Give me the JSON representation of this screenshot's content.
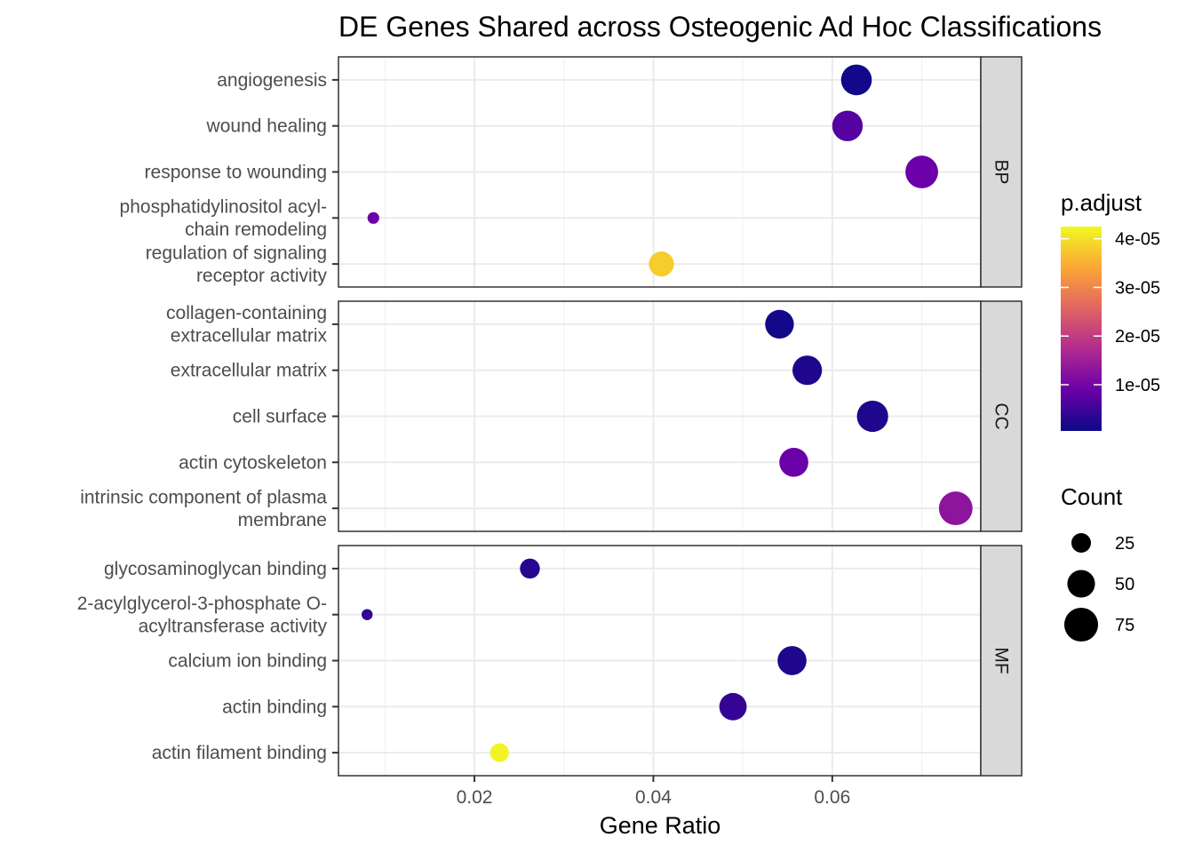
{
  "chart_data": {
    "type": "scatter",
    "title": "DE Genes Shared across Osteogenic Ad Hoc Classifications",
    "xlabel": "Gene Ratio",
    "ylabel": "",
    "xlim": [
      0.0048,
      0.0766
    ],
    "xticks": [
      {
        "value": 0.02,
        "label": "0.02"
      },
      {
        "value": 0.04,
        "label": "0.04"
      },
      {
        "value": 0.06,
        "label": "0.06"
      }
    ],
    "grid": true,
    "panels": [
      {
        "strip": "BP",
        "terms": [
          {
            "label": "angiogenesis",
            "gene_ratio": 0.0627,
            "count": 62,
            "p_adjust": 1e-06
          },
          {
            "label": "wound healing",
            "gene_ratio": 0.0617,
            "count": 61,
            "p_adjust": 7e-06
          },
          {
            "label": "response to wounding",
            "gene_ratio": 0.07,
            "count": 70,
            "p_adjust": 9e-06
          },
          {
            "label": "phosphatidylinositol acyl-\nchain remodeling",
            "gene_ratio": 0.0087,
            "count": 9,
            "p_adjust": 9e-06
          },
          {
            "label": "regulation of signaling\nreceptor activity",
            "gene_ratio": 0.0409,
            "count": 41,
            "p_adjust": 3.8e-05
          }
        ]
      },
      {
        "strip": "CC",
        "terms": [
          {
            "label": "collagen-containing\nextracellular matrix",
            "gene_ratio": 0.0541,
            "count": 54,
            "p_adjust": 1e-06
          },
          {
            "label": "extracellular matrix",
            "gene_ratio": 0.0572,
            "count": 57,
            "p_adjust": 2e-06
          },
          {
            "label": "cell surface",
            "gene_ratio": 0.0645,
            "count": 64,
            "p_adjust": 2e-06
          },
          {
            "label": "actin cytoskeleton",
            "gene_ratio": 0.0557,
            "count": 55,
            "p_adjust": 9e-06
          },
          {
            "label": "intrinsic component of plasma\nmembrane",
            "gene_ratio": 0.0738,
            "count": 74,
            "p_adjust": 1.3e-05
          }
        ]
      },
      {
        "strip": "MF",
        "terms": [
          {
            "label": "glycosaminoglycan binding",
            "gene_ratio": 0.0262,
            "count": 26,
            "p_adjust": 3e-06
          },
          {
            "label": "2-acylglycerol-3-phosphate O-\nacyltransferase activity",
            "gene_ratio": 0.008,
            "count": 8,
            "p_adjust": 4e-06
          },
          {
            "label": "calcium ion binding",
            "gene_ratio": 0.0555,
            "count": 55,
            "p_adjust": 2e-06
          },
          {
            "label": "actin binding",
            "gene_ratio": 0.0489,
            "count": 49,
            "p_adjust": 4e-06
          },
          {
            "label": "actin filament binding",
            "gene_ratio": 0.0228,
            "count": 23,
            "p_adjust": 4.2e-05
          }
        ]
      }
    ],
    "color_legend": {
      "title": "p.adjust",
      "range": [
        5e-07,
        4.25e-05
      ],
      "ticks": [
        {
          "value": 4e-05,
          "label": "4e-05"
        },
        {
          "value": 3e-05,
          "label": "3e-05"
        },
        {
          "value": 2e-05,
          "label": "2e-05"
        },
        {
          "value": 1e-05,
          "label": "1e-05"
        }
      ],
      "colors": [
        "#0d0887",
        "#6a00a8",
        "#b12a90",
        "#e16462",
        "#fca636",
        "#f0f921"
      ]
    },
    "size_legend": {
      "title": "Count",
      "entries": [
        {
          "value": 25,
          "label": "25"
        },
        {
          "value": 50,
          "label": "50"
        },
        {
          "value": 75,
          "label": "75"
        }
      ]
    },
    "legend_position": "right"
  }
}
